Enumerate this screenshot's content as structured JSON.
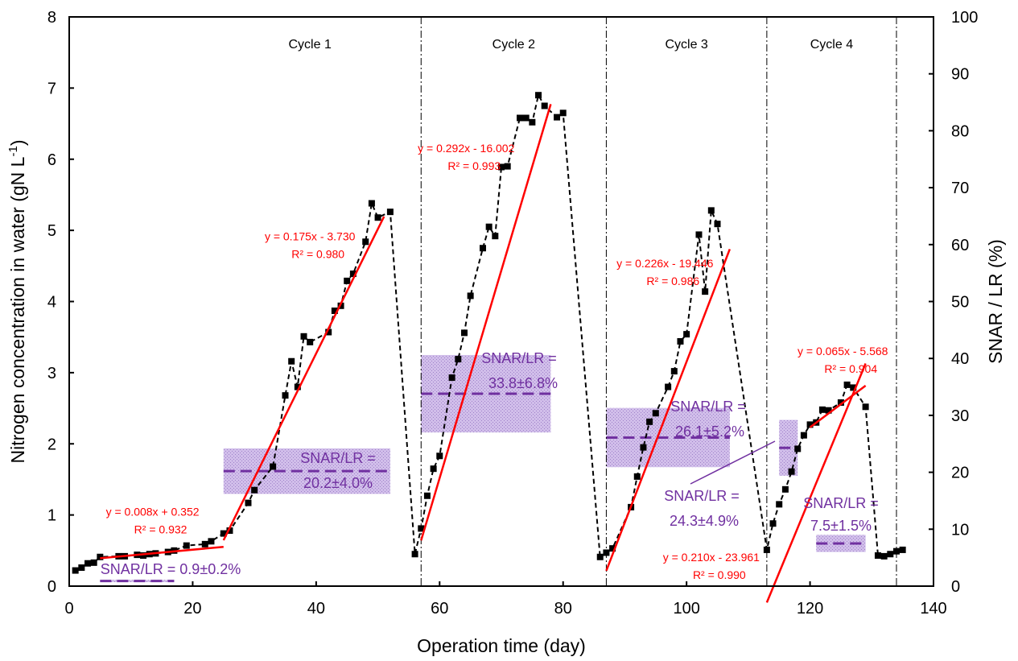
{
  "chart_data": {
    "type": "line",
    "xlabel": "Operation time (day)",
    "ylabel": "Nitrogen concentration in water  (gN L",
    "ylabel_sup": "-1",
    "ylabel_end": ")",
    "y2label": "SNAR / LR  (%)",
    "xlim": [
      0,
      140
    ],
    "ylim": [
      0,
      8
    ],
    "y2lim": [
      0,
      100
    ],
    "xticks": [
      "0",
      "20",
      "40",
      "60",
      "80",
      "100",
      "120",
      "140"
    ],
    "yticks": [
      "0",
      "1",
      "2",
      "3",
      "4",
      "5",
      "6",
      "7",
      "8"
    ],
    "y2ticks": [
      "0",
      "10",
      "20",
      "30",
      "40",
      "50",
      "60",
      "70",
      "80",
      "90",
      "100"
    ],
    "cycle_dividers": [
      57,
      87,
      113,
      134
    ],
    "cycles": [
      {
        "label": "Cycle 1",
        "x": 39
      },
      {
        "label": "Cycle 2",
        "x": 72
      },
      {
        "label": "Cycle 3",
        "x": 100
      },
      {
        "label": "Cycle 4",
        "x": 123.5
      }
    ],
    "series": [
      {
        "points": [
          [
            1,
            0.22
          ],
          [
            2,
            0.26
          ],
          [
            3,
            0.32
          ],
          [
            4,
            0.33
          ],
          [
            5,
            0.41
          ],
          [
            8,
            0.42
          ],
          [
            9,
            0.42
          ],
          [
            11,
            0.44
          ],
          [
            12,
            0.43
          ],
          [
            13,
            0.45
          ],
          [
            14,
            0.46
          ],
          [
            16,
            0.48
          ],
          [
            17,
            0.5
          ],
          [
            19,
            0.57
          ],
          [
            22,
            0.59
          ],
          [
            23,
            0.63
          ],
          [
            25,
            0.74
          ],
          [
            26,
            0.78
          ],
          [
            29,
            1.17
          ],
          [
            30,
            1.35
          ],
          [
            33,
            1.68
          ],
          [
            35,
            2.68
          ],
          [
            36,
            3.16
          ],
          [
            37,
            2.8
          ],
          [
            38,
            3.51
          ],
          [
            39,
            3.43
          ],
          [
            42,
            3.57
          ],
          [
            43,
            3.87
          ],
          [
            44,
            3.94
          ],
          [
            45,
            4.29
          ],
          [
            46,
            4.39
          ],
          [
            48,
            4.84
          ],
          [
            49,
            5.38
          ],
          [
            50,
            5.18
          ],
          [
            52,
            5.26
          ],
          [
            56,
            0.45
          ],
          [
            57,
            0.81
          ],
          [
            58,
            1.27
          ],
          [
            59,
            1.65
          ],
          [
            60,
            1.83
          ],
          [
            62,
            2.93
          ],
          [
            63,
            3.19
          ],
          [
            64,
            3.56
          ],
          [
            65,
            4.08
          ],
          [
            67,
            4.75
          ],
          [
            68,
            5.05
          ],
          [
            69,
            4.92
          ],
          [
            70,
            5.89
          ],
          [
            71,
            5.9
          ],
          [
            73,
            6.58
          ],
          [
            74,
            6.58
          ],
          [
            75,
            6.52
          ],
          [
            76,
            6.9
          ],
          [
            77,
            6.75
          ],
          [
            79,
            6.59
          ],
          [
            80,
            6.65
          ],
          [
            86,
            0.41
          ],
          [
            87,
            0.47
          ],
          [
            88,
            0.53
          ],
          [
            91,
            1.11
          ],
          [
            92,
            1.54
          ],
          [
            93,
            1.95
          ],
          [
            94,
            2.31
          ],
          [
            95,
            2.43
          ],
          [
            97,
            2.8
          ],
          [
            98,
            3.02
          ],
          [
            99,
            3.44
          ],
          [
            100,
            3.54
          ],
          [
            102,
            4.94
          ],
          [
            103,
            4.14
          ],
          [
            104,
            5.28
          ],
          [
            105,
            5.09
          ],
          [
            113,
            0.51
          ],
          [
            114,
            0.88
          ],
          [
            115,
            1.15
          ],
          [
            116,
            1.36
          ],
          [
            117,
            1.61
          ],
          [
            118,
            1.93
          ],
          [
            119,
            2.12
          ],
          [
            120,
            2.27
          ],
          [
            121,
            2.3
          ],
          [
            122,
            2.48
          ],
          [
            123,
            2.47
          ],
          [
            125,
            2.58
          ],
          [
            126,
            2.83
          ],
          [
            127,
            2.79
          ],
          [
            129,
            2.52
          ],
          [
            131,
            0.43
          ],
          [
            132,
            0.42
          ],
          [
            133,
            0.45
          ],
          [
            134,
            0.49
          ],
          [
            135,
            0.51
          ]
        ]
      }
    ],
    "fits": [
      {
        "x0": 5,
        "x1": 25,
        "slope": 0.008,
        "intercept": 0.352,
        "eq": "y = 0.008x + 0.352",
        "r2": "R² = 0.932",
        "label_pos": [
          13.5,
          0.99
        ]
      },
      {
        "x0": 25,
        "x1": 51,
        "slope": 0.175,
        "intercept": -3.73,
        "eq": "y = 0.175x - 3.730",
        "r2": "R² = 0.980",
        "label_pos": [
          39,
          4.86
        ]
      },
      {
        "x0": 57,
        "x1": 78,
        "slope": 0.292,
        "intercept": -16.002,
        "eq": "y = 0.292x - 16.002",
        "r2": "R² = 0.993",
        "label_pos": [
          64.3,
          6.1
        ]
      },
      {
        "x0": 87,
        "x1": 107,
        "slope": 0.226,
        "intercept": -19.446,
        "eq": "y = 0.226x - 19.446",
        "r2": "R² = 0.986",
        "label_pos": [
          96.5,
          4.48
        ]
      },
      {
        "x0": 113,
        "x1": 129,
        "slope": 0.21,
        "intercept": -23.961,
        "eq": "y = 0.210x - 23.961",
        "r2": "R² = 0.990",
        "label_pos": [
          104,
          0.35
        ]
      },
      {
        "x0": 120,
        "x1": 129,
        "slope": 0.065,
        "intercept": -5.568,
        "eq": "y = 0.065x - 5.568",
        "r2": "R² = 0.904",
        "label_pos": [
          125.3,
          3.25
        ]
      }
    ],
    "snar_lr": [
      {
        "x0": 5,
        "x1": 17,
        "value": 0.9,
        "sd": 0.2,
        "label": "SNAR/LR = 0.9±0.2%"
      },
      {
        "x0": 25,
        "x1": 52,
        "value": 20.2,
        "sd": 4.0,
        "label": "SNAR/LR =",
        "label2": "20.2±4.0%"
      },
      {
        "x0": 57,
        "x1": 78,
        "value": 33.8,
        "sd": 6.8,
        "label": "SNAR/LR =",
        "label2": "33.8±6.8%"
      },
      {
        "x0": 87,
        "x1": 107,
        "value": 26.1,
        "sd": 5.2,
        "label": "SNAR/LR =",
        "label2": "26.1±5.2%"
      },
      {
        "x0": 115,
        "x1": 118,
        "value": 24.3,
        "sd": 4.9,
        "label": "SNAR/LR =",
        "label2": "24.3±4.9%"
      },
      {
        "x0": 121,
        "x1": 129,
        "value": 7.5,
        "sd": 1.5,
        "label": "SNAR/LR =",
        "label2": "7.5±1.5%"
      }
    ]
  }
}
